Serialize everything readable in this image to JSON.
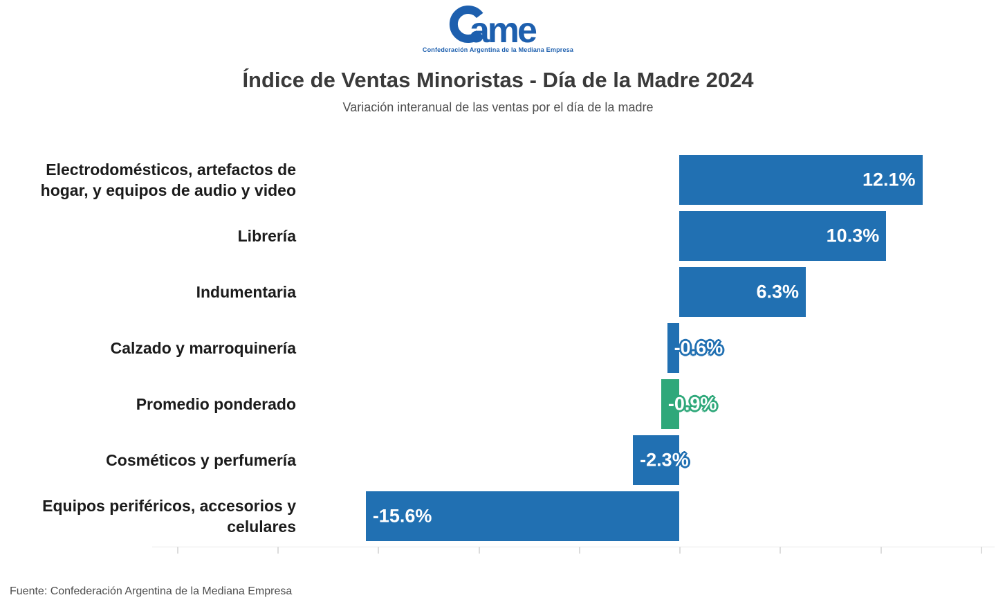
{
  "brand": {
    "name": "CAME",
    "logo_suffix": "ame",
    "tagline": "Confederación Argentina de la Mediana Empresa",
    "logo_color": "#1d5fae"
  },
  "footer": {
    "source": "Fuente: Confederación Argentina de la Mediana Empresa"
  },
  "chart_data": {
    "type": "bar",
    "orientation": "horizontal",
    "title": "Índice de Ventas Minoristas - Día de la Madre 2024",
    "subtitle": "Variación interanual de las ventas por el día de la madre",
    "categories": [
      "Electrodomésticos, artefactos de hogar, y equipos de audio y video",
      "Librería",
      "Indumentaria",
      "Calzado y marroquinería",
      "Promedio ponderado",
      "Cosméticos y perfumería",
      "Equipos periféricos, accesorios y celulares"
    ],
    "values": [
      12.1,
      10.3,
      6.3,
      -0.6,
      -0.9,
      -2.3,
      -15.6
    ],
    "value_labels": [
      "12.1%",
      "10.3%",
      "6.3%",
      "-0.6%",
      "-0.9%",
      "-2.3%",
      "-15.6%"
    ],
    "highlight_index": 4,
    "bar_color": "#2170b2",
    "highlight_color": "#2fa87a",
    "value_text_color": "#ffffff",
    "axis": {
      "xlim": [
        -26.2,
        15.7
      ],
      "tick_values": [
        -25,
        -20,
        -15,
        -10,
        -5,
        0,
        5,
        10,
        15
      ],
      "tick_labels_visible": false,
      "grid": false
    },
    "legend": null
  }
}
